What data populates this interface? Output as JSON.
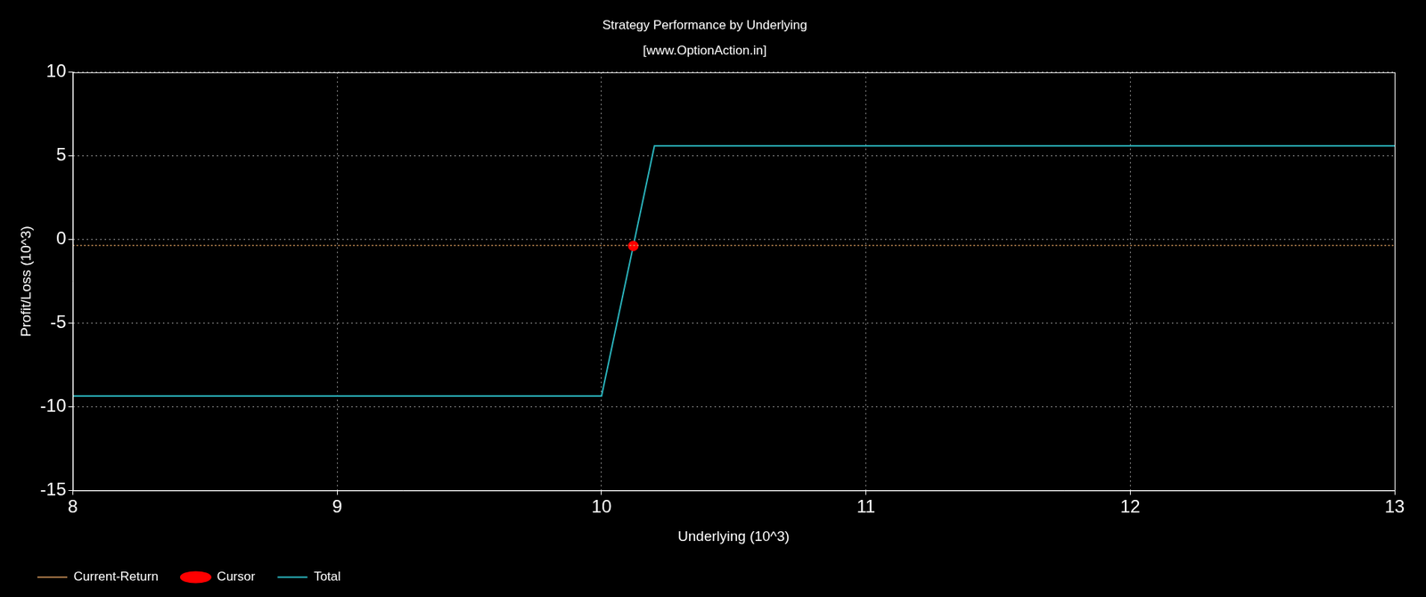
{
  "chart_data": {
    "type": "line",
    "title": "Strategy Performance by Underlying",
    "subtitle": "[www.OptionAction.in]",
    "x_label": "Underlying (10^3)",
    "y_label": "Profit/Loss (10^3)",
    "x": [
      8,
      10,
      10.12,
      10.2,
      13
    ],
    "series": [
      {
        "name": "Current-Return",
        "color": "#e0a060",
        "line_style": "dotted",
        "values": [
          -0.35,
          -0.35,
          -0.35,
          -0.35,
          -0.35
        ]
      },
      {
        "name": "Cursor",
        "color": "#ff0000",
        "marker": "circle",
        "values": [
          null,
          null,
          -0.38,
          null,
          null
        ]
      },
      {
        "name": "Total",
        "color": "#2bb5be",
        "line_style": "solid",
        "values": [
          -9.35,
          -9.35,
          -0.38,
          5.6,
          5.6
        ]
      }
    ],
    "xlim": [
      8,
      13
    ],
    "xticks": [
      8,
      9,
      10,
      11,
      12,
      13
    ],
    "ylim": [
      -15,
      10
    ],
    "yticks": [
      -15,
      -10,
      -5,
      0,
      5,
      10
    ],
    "grid": true,
    "legend": "bottom left"
  }
}
